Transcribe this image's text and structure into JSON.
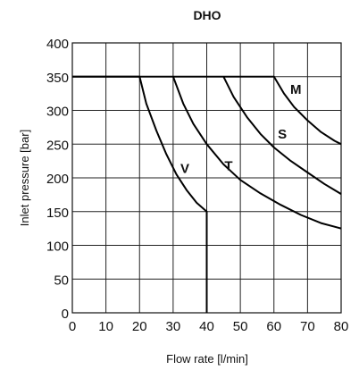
{
  "chart_data": {
    "type": "line",
    "title": "DHO",
    "xlabel": "Flow rate [l/min]",
    "ylabel": "Inlet pressure [bar]",
    "xlim": [
      0,
      80
    ],
    "ylim": [
      0,
      400
    ],
    "xticks": [
      0,
      10,
      20,
      30,
      40,
      50,
      60,
      70,
      80
    ],
    "yticks": [
      0,
      50,
      100,
      150,
      200,
      250,
      300,
      350,
      400
    ],
    "grid": true,
    "legend": "none",
    "series": [
      {
        "name": "V",
        "x": [
          0,
          20,
          22,
          25,
          28,
          31,
          34,
          37,
          40,
          40
        ],
        "y": [
          350,
          350,
          310,
          270,
          235,
          205,
          182,
          163,
          150,
          0
        ]
      },
      {
        "name": "T",
        "x": [
          30,
          33,
          36,
          40,
          45,
          50,
          56,
          62,
          68,
          74,
          80
        ],
        "y": [
          350,
          310,
          280,
          250,
          220,
          197,
          177,
          160,
          145,
          133,
          125
        ]
      },
      {
        "name": "S",
        "x": [
          45,
          48,
          52,
          56,
          60,
          65,
          70,
          75,
          80
        ],
        "y": [
          350,
          320,
          290,
          265,
          245,
          225,
          208,
          191,
          176
        ]
      },
      {
        "name": "M",
        "x": [
          0,
          60,
          63,
          66,
          70,
          74,
          78,
          80
        ],
        "y": [
          350,
          350,
          325,
          305,
          285,
          268,
          255,
          250
        ]
      }
    ],
    "curve_labels": [
      {
        "text": "V",
        "x": 33.5,
        "y": 214
      },
      {
        "text": "T",
        "x": 46.5,
        "y": 218
      },
      {
        "text": "S",
        "x": 62.5,
        "y": 265
      },
      {
        "text": "M",
        "x": 66.5,
        "y": 331
      }
    ]
  }
}
